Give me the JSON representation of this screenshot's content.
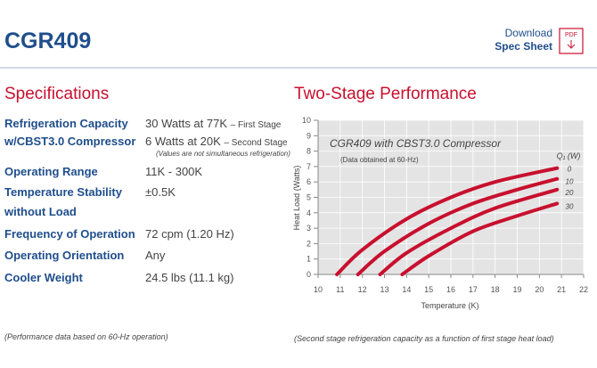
{
  "header": {
    "title": "CGR409",
    "download": "Download",
    "spec_sheet": "Spec Sheet",
    "pdf_icon": "PDF"
  },
  "specs": {
    "title": "Specifications",
    "rows": [
      {
        "label": [
          "Refrigeration Capacity",
          "w/CBST3.0 Compressor"
        ],
        "values": [
          {
            "main": "30 Watts at 77K",
            "suffix": "– First Stage"
          },
          {
            "main": "6 Watts at 20K",
            "suffix": "– Second Stage"
          }
        ],
        "note": "(Values are not simultaneous refrigeration)"
      },
      {
        "label": [
          "Operating Range"
        ],
        "value": "11K - 300K"
      },
      {
        "label": [
          "Temperature Stability",
          "without Load"
        ],
        "value": "±0.5K"
      },
      {
        "label": [
          "Frequency of Operation"
        ],
        "value": "72 cpm (1.20 Hz)"
      },
      {
        "label": [
          "Operating Orientation"
        ],
        "value": "Any"
      },
      {
        "label": [
          "Cooler Weight"
        ],
        "value": "24.5 lbs (11.1 kg)"
      }
    ],
    "footnote": "(Performance data based on 60-Hz operation)"
  },
  "performance": {
    "title": "Two-Stage Performance",
    "footnote": "(Second stage refrigeration capacity as a function of first stage heat load)"
  },
  "chart_data": {
    "type": "line",
    "title": "CGR409 with CBST3.0 Compressor",
    "subtitle": "(Data obtained at 60-Hz)",
    "x_label": "Temperature (K)",
    "y_label": "Heat Load (Watts)",
    "legend_title": "Q₁ (W)",
    "xlim": [
      10,
      22
    ],
    "ylim": [
      0,
      10
    ],
    "xticks": [
      10,
      11,
      12,
      13,
      14,
      15,
      16,
      17,
      18,
      19,
      20,
      21,
      22
    ],
    "yticks": [
      0,
      1,
      2,
      3,
      4,
      5,
      6,
      7,
      8,
      9,
      10
    ],
    "grid": true,
    "series": [
      {
        "name": "0",
        "color": "#c8102e",
        "x": [
          10.85,
          12,
          14,
          16,
          18,
          20.8
        ],
        "values": [
          0,
          1.6,
          3.6,
          5.0,
          6.0,
          6.9
        ]
      },
      {
        "name": "10",
        "color": "#c8102e",
        "x": [
          11.8,
          13,
          15,
          17,
          19,
          20.8
        ],
        "values": [
          0,
          1.5,
          3.3,
          4.6,
          5.5,
          6.2
        ]
      },
      {
        "name": "20",
        "color": "#c8102e",
        "x": [
          12.8,
          14,
          16,
          18,
          20.8
        ],
        "values": [
          0,
          1.4,
          3.0,
          4.3,
          5.5
        ]
      },
      {
        "name": "30",
        "color": "#c8102e",
        "x": [
          13.8,
          15,
          17,
          19,
          20.8
        ],
        "values": [
          0,
          1.2,
          2.8,
          3.8,
          4.6
        ]
      }
    ]
  }
}
